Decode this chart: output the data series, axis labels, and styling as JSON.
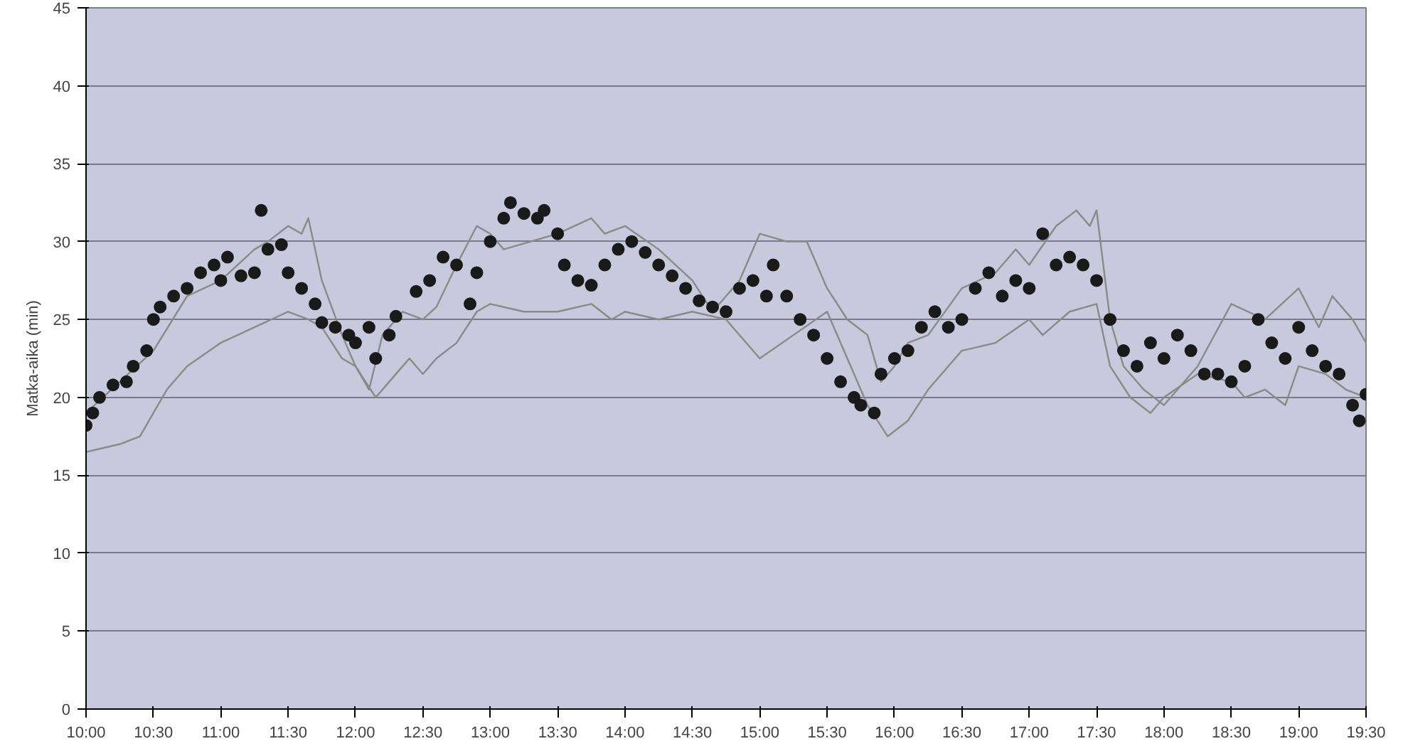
{
  "chart_data": {
    "type": "line",
    "ylabel": "Matka-aika (min)",
    "xlim": [
      10,
      19.5
    ],
    "ylim": [
      0,
      45
    ],
    "yticks": [
      0,
      5,
      10,
      15,
      20,
      25,
      30,
      35,
      40,
      45
    ],
    "xticks": [
      {
        "value": 10,
        "label": "10:00"
      },
      {
        "value": 10.5,
        "label": "10:30"
      },
      {
        "value": 11,
        "label": "11:00"
      },
      {
        "value": 11.5,
        "label": "11:30"
      },
      {
        "value": 12,
        "label": "12:00"
      },
      {
        "value": 12.5,
        "label": "12:30"
      },
      {
        "value": 13,
        "label": "13:00"
      },
      {
        "value": 13.5,
        "label": "13:30"
      },
      {
        "value": 14,
        "label": "14:00"
      },
      {
        "value": 14.5,
        "label": "14:30"
      },
      {
        "value": 15,
        "label": "15:00"
      },
      {
        "value": 15.5,
        "label": "15:30"
      },
      {
        "value": 16,
        "label": "16:00"
      },
      {
        "value": 16.5,
        "label": "16:30"
      },
      {
        "value": 17,
        "label": "17:00"
      },
      {
        "value": 17.5,
        "label": "17:30"
      },
      {
        "value": 18,
        "label": "18:00"
      },
      {
        "value": 18.5,
        "label": "18:30"
      },
      {
        "value": 19,
        "label": "19:00"
      },
      {
        "value": 19.5,
        "label": "19:30"
      }
    ],
    "grid": "y",
    "series": [
      {
        "color": "#8a8a8a",
        "x": [
          10.0,
          10.25,
          10.5,
          10.75,
          11.0,
          11.25,
          11.35,
          11.5,
          11.6,
          11.65,
          11.75,
          11.9,
          12.0,
          12.1,
          12.2,
          12.35,
          12.5,
          12.6,
          12.75,
          12.9,
          13.0,
          13.1,
          13.3,
          13.5,
          13.75,
          13.85,
          14.0,
          14.25,
          14.5,
          14.65,
          14.85,
          15.0,
          15.2,
          15.35,
          15.5,
          15.65,
          15.8,
          15.9,
          16.0,
          16.1,
          16.25,
          16.5,
          16.75,
          16.9,
          17.0,
          17.2,
          17.35,
          17.45,
          17.5,
          17.6,
          17.7,
          17.85,
          18.0,
          18.25,
          18.5,
          18.75,
          19.0,
          19.15,
          19.25,
          19.4,
          19.5
        ],
        "values": [
          19,
          21,
          23,
          26.5,
          27.5,
          29.5,
          30,
          31,
          30.5,
          31.5,
          27.5,
          24,
          22,
          20.5,
          24,
          25.5,
          25,
          25.8,
          28.5,
          31,
          30.5,
          29.5,
          30,
          30.5,
          31.5,
          30.5,
          31,
          29.5,
          27.5,
          25.5,
          27.5,
          30.5,
          30,
          30,
          27,
          25,
          24,
          21,
          22,
          23.5,
          24,
          27,
          28,
          29.5,
          28.5,
          31,
          32,
          31,
          32,
          25,
          22,
          20.5,
          19.5,
          22,
          26,
          25,
          27,
          24.5,
          26.5,
          25,
          23.5
        ]
      },
      {
        "color": "#8a8a8a",
        "x": [
          10.0,
          10.25,
          10.4,
          10.5,
          10.6,
          10.75,
          11.0,
          11.25,
          11.5,
          11.65,
          11.75,
          11.9,
          12.0,
          12.15,
          12.25,
          12.4,
          12.5,
          12.6,
          12.75,
          12.9,
          13.0,
          13.25,
          13.5,
          13.75,
          13.9,
          14.0,
          14.25,
          14.5,
          14.75,
          15.0,
          15.25,
          15.5,
          15.65,
          15.8,
          15.95,
          16.1,
          16.25,
          16.5,
          16.75,
          17.0,
          17.1,
          17.3,
          17.5,
          17.6,
          17.75,
          17.9,
          18.0,
          18.25,
          18.5,
          18.6,
          18.75,
          18.9,
          19.0,
          19.2,
          19.35,
          19.5
        ],
        "values": [
          16.5,
          17,
          17.5,
          19,
          20.5,
          22,
          23.5,
          24.5,
          25.5,
          25,
          24.5,
          22.5,
          22,
          20,
          21,
          22.5,
          21.5,
          22.5,
          23.5,
          25.5,
          26,
          25.5,
          25.5,
          26,
          25,
          25.5,
          25,
          25.5,
          25,
          22.5,
          24,
          25.5,
          22.5,
          19.5,
          17.5,
          18.5,
          20.5,
          23,
          23.5,
          25,
          24,
          25.5,
          26,
          22,
          20,
          19,
          20,
          21.5,
          21,
          20,
          20.5,
          19.5,
          22,
          21.5,
          20.5,
          20
        ]
      },
      {
        "type": "scatter",
        "color": "#1a1a1a",
        "marker": "circle",
        "x": [
          10.0,
          10.05,
          10.1,
          10.2,
          10.3,
          10.35,
          10.45,
          10.5,
          10.55,
          10.65,
          10.75,
          10.85,
          10.95,
          11.0,
          11.05,
          11.15,
          11.25,
          11.3,
          11.35,
          11.45,
          11.5,
          11.6,
          11.7,
          11.75,
          11.85,
          11.95,
          12.0,
          12.1,
          12.15,
          12.25,
          12.3,
          12.45,
          12.55,
          12.65,
          12.75,
          12.85,
          12.9,
          13.0,
          13.1,
          13.15,
          13.25,
          13.35,
          13.4,
          13.5,
          13.55,
          13.65,
          13.75,
          13.85,
          13.95,
          14.05,
          14.15,
          14.25,
          14.35,
          14.45,
          14.55,
          14.65,
          14.75,
          14.85,
          14.95,
          15.05,
          15.1,
          15.2,
          15.3,
          15.4,
          15.5,
          15.6,
          15.7,
          15.75,
          15.85,
          15.9,
          16.0,
          16.1,
          16.2,
          16.3,
          16.4,
          16.5,
          16.6,
          16.7,
          16.8,
          16.9,
          17.0,
          17.1,
          17.2,
          17.3,
          17.4,
          17.5,
          17.6,
          17.7,
          17.8,
          17.9,
          18.0,
          18.1,
          18.2,
          18.3,
          18.4,
          18.5,
          18.6,
          18.7,
          18.8,
          18.9,
          19.0,
          19.1,
          19.2,
          19.3,
          19.4,
          19.45,
          19.5
        ],
        "values": [
          18.2,
          19,
          20,
          20.8,
          21,
          22,
          23,
          25,
          25.8,
          26.5,
          27,
          28,
          28.5,
          27.5,
          29,
          27.8,
          28,
          32,
          29.5,
          29.8,
          28,
          27,
          26,
          24.8,
          24.5,
          24,
          23.5,
          24.5,
          22.5,
          24,
          25.2,
          26.8,
          27.5,
          29,
          28.5,
          26,
          28,
          30,
          31.5,
          32.5,
          31.8,
          31.5,
          32,
          30.5,
          28.5,
          27.5,
          27.2,
          28.5,
          29.5,
          30,
          29.3,
          28.5,
          27.8,
          27,
          26.2,
          25.8,
          25.5,
          27,
          27.5,
          26.5,
          28.5,
          26.5,
          25,
          24,
          22.5,
          21,
          20,
          19.5,
          19,
          21.5,
          22.5,
          23,
          24.5,
          25.5,
          24.5,
          25,
          27,
          28,
          26.5,
          27.5,
          27,
          30.5,
          28.5,
          29,
          28.5,
          27.5,
          25,
          23,
          22,
          23.5,
          22.5,
          24,
          23,
          21.5,
          21.5,
          21,
          22,
          25,
          23.5,
          22.5,
          24.5,
          23,
          22,
          21.5,
          19.5,
          18.5,
          20.2
        ]
      }
    ]
  }
}
